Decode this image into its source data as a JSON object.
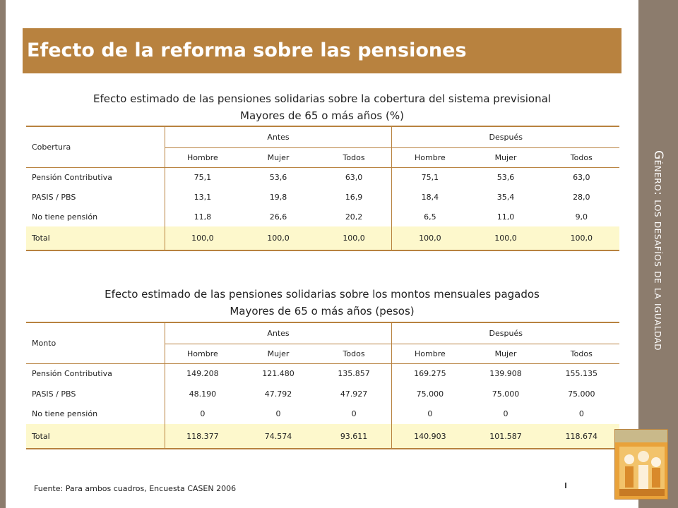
{
  "side_title": "Género: los desafíos de la igualdad",
  "title": "Efecto de la reforma sobre las pensiones",
  "table1": {
    "caption_line1": "Efecto estimado de las pensiones solidarias sobre la cobertura del sistema previsional",
    "caption_line2": "Mayores de 65 o más años (%)",
    "header": "Cobertura",
    "group_antes": "Antes",
    "group_despues": "Después",
    "sub": [
      "Hombre",
      "Mujer",
      "Todos",
      "Hombre",
      "Mujer",
      "Todos"
    ],
    "rows": [
      {
        "label": "Pensión Contributiva",
        "values": [
          "75,1",
          "53,6",
          "63,0",
          "75,1",
          "53,6",
          "63,0"
        ]
      },
      {
        "label": "PASIS / PBS",
        "values": [
          "13,1",
          "19,8",
          "16,9",
          "18,4",
          "35,4",
          "28,0"
        ]
      },
      {
        "label": "No tiene pensión",
        "values": [
          "11,8",
          "26,6",
          "20,2",
          "6,5",
          "11,0",
          "9,0"
        ]
      },
      {
        "label": "Total",
        "values": [
          "100,0",
          "100,0",
          "100,0",
          "100,0",
          "100,0",
          "100,0"
        ]
      }
    ]
  },
  "table2": {
    "caption_line1": "Efecto estimado de las pensiones solidarias sobre los montos mensuales pagados",
    "caption_line2": "Mayores de 65 o más años (pesos)",
    "header": "Monto",
    "group_antes": "Antes",
    "group_despues": "Después",
    "sub": [
      "Hombre",
      "Mujer",
      "Todos",
      "Hombre",
      "Mujer",
      "Todos"
    ],
    "rows": [
      {
        "label": "Pensión Contributiva",
        "values": [
          "149.208",
          "121.480",
          "135.857",
          "169.275",
          "139.908",
          "155.135"
        ]
      },
      {
        "label": "PASIS / PBS",
        "values": [
          "48.190",
          "47.792",
          "47.927",
          "75.000",
          "75.000",
          "75.000"
        ]
      },
      {
        "label": "No tiene pensión",
        "values": [
          "0",
          "0",
          "0",
          "0",
          "0",
          "0"
        ]
      },
      {
        "label": "Total",
        "values": [
          "118.377",
          "74.574",
          "93.611",
          "140.903",
          "101.587",
          "118.674"
        ]
      }
    ]
  },
  "footnote": "Fuente: Para ambos cuadros, Encuesta CASEN 2006",
  "colors": {
    "title_bar": "#b8823f",
    "side_band": "#8c7c6d",
    "total_row": "#fdf8cc",
    "rule": "#b8823f"
  }
}
